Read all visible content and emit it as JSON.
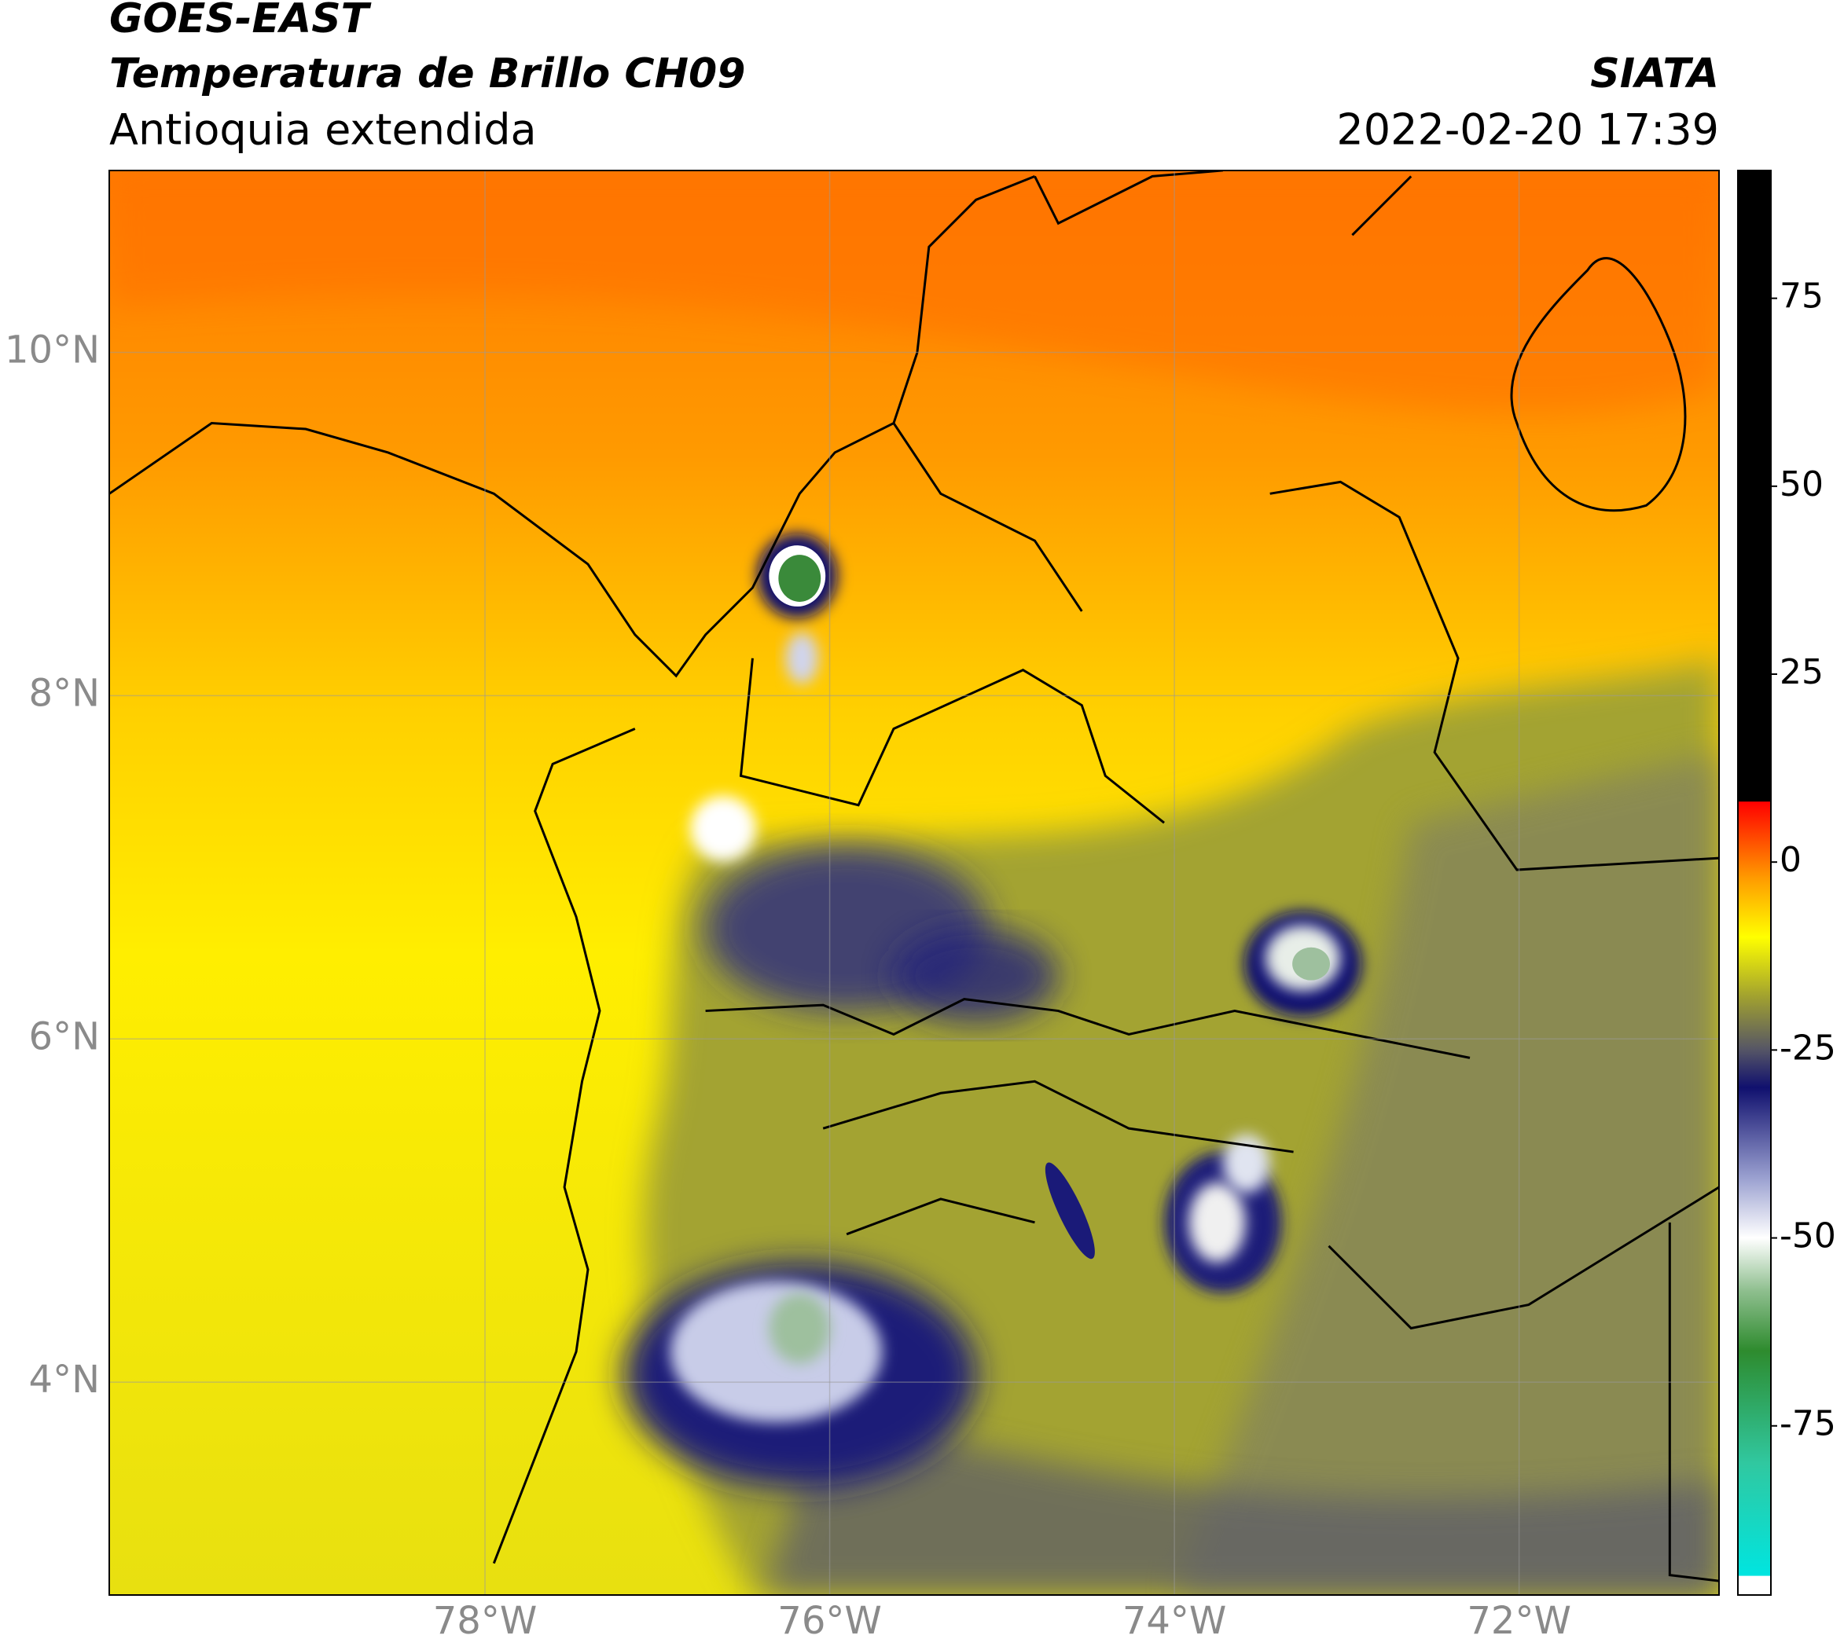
{
  "header": {
    "title": "GOES-EAST",
    "subtitle": "Temperatura de Brillo CH09",
    "region": "Antioquia extendida",
    "source": "SIATA",
    "datetime": "2022-02-20 17:39"
  },
  "map": {
    "type": "map",
    "xlim": [
      -80.18,
      -70.84
    ],
    "ylim": [
      2.76,
      11.06
    ],
    "xticks": [
      {
        "value": -78,
        "label": "78°W"
      },
      {
        "value": -76,
        "label": "76°W"
      },
      {
        "value": -74,
        "label": "74°W"
      },
      {
        "value": -72,
        "label": "72°W"
      }
    ],
    "yticks": [
      {
        "value": 10,
        "label": "10°N"
      },
      {
        "value": 8,
        "label": "8°N"
      },
      {
        "value": 6,
        "label": "6°N"
      },
      {
        "value": 4,
        "label": "4°N"
      }
    ],
    "grid": true
  },
  "colorbar": {
    "lim": [
      -97.5,
      92
    ],
    "ticks": [
      75,
      50,
      25,
      0,
      -25,
      -50,
      -75
    ],
    "stops": [
      {
        "value": -97.5,
        "color": "#ffffff"
      },
      {
        "value": -95,
        "color": "#ffffff"
      },
      {
        "value": -94.9,
        "color": "#00e5e0"
      },
      {
        "value": -80,
        "color": "#30c8a0"
      },
      {
        "value": -65,
        "color": "#2e8b2e"
      },
      {
        "value": -57,
        "color": "#8fbf8f"
      },
      {
        "value": -50,
        "color": "#ffffff"
      },
      {
        "value": -42,
        "color": "#9aa0d0"
      },
      {
        "value": -30,
        "color": "#10106e"
      },
      {
        "value": -25,
        "color": "#555566"
      },
      {
        "value": -18,
        "color": "#a0a030"
      },
      {
        "value": -10,
        "color": "#ffff00"
      },
      {
        "value": -2,
        "color": "#ff9900"
      },
      {
        "value": 8,
        "color": "#ff0000"
      },
      {
        "value": 8.1,
        "color": "#000000"
      },
      {
        "value": 92,
        "color": "#000000"
      }
    ]
  }
}
